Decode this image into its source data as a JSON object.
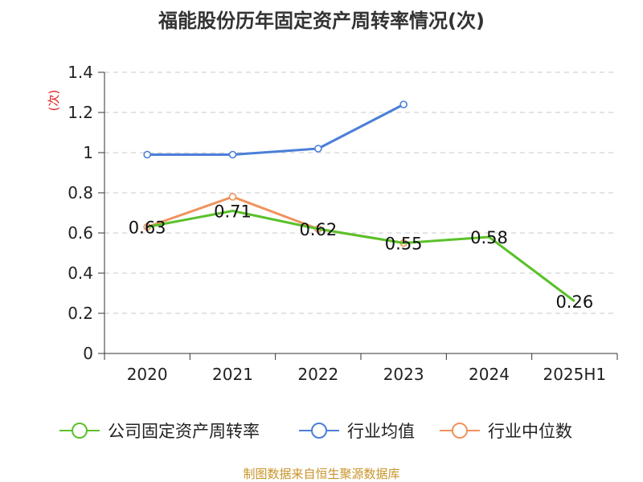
{
  "title": "福能股份历年固定资产周转率情况(次)",
  "source": "制图数据来自恒生聚源数据库",
  "chart_data": {
    "type": "line",
    "title": "福能股份历年固定资产周转率情况(次)",
    "ylabel": "(次)",
    "xlabel": "",
    "categories": [
      "2020",
      "2021",
      "2022",
      "2023",
      "2024",
      "2025H1"
    ],
    "ylim": [
      0,
      1.4
    ],
    "yticks": [
      0,
      0.2,
      0.4,
      0.6,
      0.8,
      1,
      1.2,
      1.4
    ],
    "ytick_labels": [
      "0",
      "0.2",
      "0.4",
      "0.6",
      "0.8",
      "1",
      "1.2",
      "1.4"
    ],
    "grid": true,
    "legend_position": "bottom",
    "series": [
      {
        "name": "公司固定资产周转率",
        "color": "#5ac12a",
        "values": [
          0.63,
          0.71,
          0.62,
          0.55,
          0.58,
          0.26
        ],
        "data_labels": [
          "0.63",
          "0.71",
          "0.62",
          "0.55",
          "0.58",
          "0.26"
        ]
      },
      {
        "name": "行业均值",
        "color": "#4a7fd8",
        "values": [
          0.99,
          0.99,
          1.02,
          1.24,
          null,
          null
        ]
      },
      {
        "name": "行业中位数",
        "color": "#f0925c",
        "values": [
          0.63,
          0.78,
          0.62,
          0.55,
          null,
          null
        ]
      }
    ]
  }
}
